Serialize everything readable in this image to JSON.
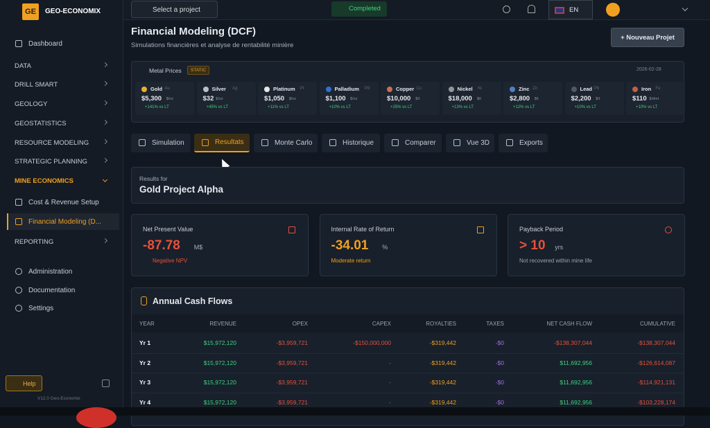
{
  "sidebar": {
    "logo": "GE",
    "brand": "GEO-ECONOMIX",
    "top": "Dashboard",
    "nav": [
      {
        "label": "DATA"
      },
      {
        "label": "DRILL SMART"
      },
      {
        "label": "GEOLOGY"
      },
      {
        "label": "GEOSTATISTICS"
      },
      {
        "label": "RESOURCE MODELING"
      },
      {
        "label": "STRATEGIC PLANNING"
      },
      {
        "label": "MINE ECONOMICS"
      }
    ],
    "sub": [
      "Cost & Revenue Setup",
      "Financial Modeling (D..."
    ],
    "after": "REPORTING",
    "bottom": [
      "Administration",
      "Documentation",
      "Settings"
    ],
    "help": "Help",
    "version": "V12.0 Geo-Economix"
  },
  "topbar": {
    "project": "Select a project",
    "status": "Completed",
    "lang": "EN"
  },
  "header": {
    "title": "Financial Modeling (DCF)",
    "subtitle": "Simulations financières et analyse de rentabilité minière",
    "button": "+ Nouveau Projet"
  },
  "metals": {
    "label": "Metal Prices",
    "badge": "STATIC",
    "date": "2026-02-28",
    "items": [
      {
        "name": "Gold",
        "symbol": "Au",
        "price": "$5,300",
        "unit": "$/oz",
        "change": "+141% vs LT"
      },
      {
        "name": "Silver",
        "symbol": "Ag",
        "price": "$32",
        "unit": "$/oz",
        "change": "+45% vs LT"
      },
      {
        "name": "Platinum",
        "symbol": "Pt",
        "price": "$1,050",
        "unit": "$/oz",
        "change": "+11% vs LT"
      },
      {
        "name": "Palladium",
        "symbol": "Pd",
        "price": "$1,100",
        "unit": "$/oz",
        "change": "+10% vs LT"
      },
      {
        "name": "Copper",
        "symbol": "Cu",
        "price": "$10,000",
        "unit": "$/t",
        "change": "+25% vs LT"
      },
      {
        "name": "Nickel",
        "symbol": "Ni",
        "price": "$18,000",
        "unit": "$/t",
        "change": "+13% vs LT"
      },
      {
        "name": "Zinc",
        "symbol": "Zn",
        "price": "$2,800",
        "unit": "$/t",
        "change": "+12% vs LT"
      },
      {
        "name": "Lead",
        "symbol": "Pb",
        "price": "$2,200",
        "unit": "$/t",
        "change": "+10% vs LT"
      },
      {
        "name": "Iron",
        "symbol": "Fe",
        "price": "$110",
        "unit": "$/dmt",
        "change": "+10% vs LT"
      }
    ]
  },
  "tabs": [
    "Simulation",
    "Resultats",
    "Monte Carlo",
    "Historique",
    "Comparer",
    "Vue 3D",
    "Exports"
  ],
  "results": {
    "label": "Results for",
    "name": "Gold Project Alpha"
  },
  "kpis": [
    {
      "label": "Net Present Value",
      "value": "-87.78",
      "unit": "M$",
      "note": "Negative NPV"
    },
    {
      "label": "Internal Rate of Return",
      "value": "-34.01",
      "unit": "%",
      "note": "Moderate return"
    },
    {
      "label": "Payback Period",
      "value": "> 10",
      "unit": "yrs",
      "note": "Not recovered within mine life"
    }
  ],
  "table": {
    "title": "Annual Cash Flows",
    "headers": [
      "YEAR",
      "REVENUE",
      "OPEX",
      "CAPEX",
      "ROYALTIES",
      "TAXES",
      "NET CASH FLOW",
      "CUMULATIVE"
    ],
    "rows": [
      [
        "Yr 1",
        "$15,972,120",
        "-$3,959,721",
        "-$150,000,000",
        "-$319,442",
        "-$0",
        "-$138,307,044",
        "-$138,307,044"
      ],
      [
        "Yr 2",
        "$15,972,120",
        "-$3,959,721",
        "-",
        "-$319,442",
        "-$0",
        "$11,692,956",
        "-$126,614,087"
      ],
      [
        "Yr 3",
        "$15,972,120",
        "-$3,959,721",
        "-",
        "-$319,442",
        "-$0",
        "$11,692,956",
        "-$114,921,131"
      ],
      [
        "Yr 4",
        "$15,972,120",
        "-$3,959,721",
        "-",
        "-$319,442",
        "-$0",
        "$11,692,956",
        "-$103,228,174"
      ]
    ]
  }
}
